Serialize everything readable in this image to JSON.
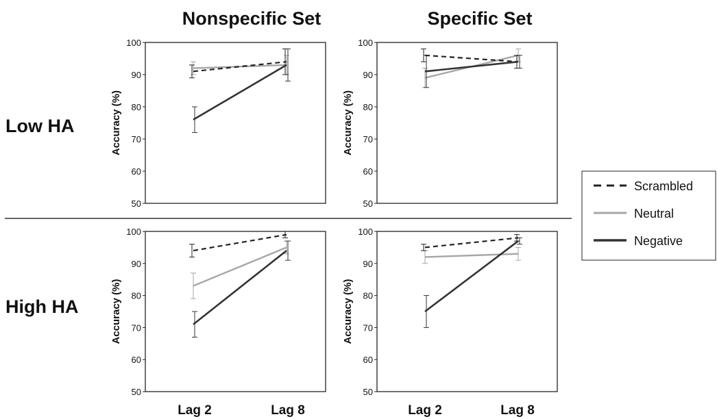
{
  "column_titles": [
    "Nonspecific Set",
    "Specific Set"
  ],
  "row_labels": [
    "Low HA",
    "High HA"
  ],
  "legend": [
    {
      "name": "Scrambled",
      "color": "#222222",
      "dashed": true
    },
    {
      "name": "Neutral",
      "color": "#a6a6a6",
      "dashed": false
    },
    {
      "name": "Negative",
      "color": "#333333",
      "dashed": false
    }
  ],
  "chart_data": [
    {
      "type": "line",
      "panel": "Low HA - Nonspecific Set",
      "categories": [
        "Lag 2",
        "Lag 8"
      ],
      "ylabel": "Accuracy (%)",
      "ylim": [
        50,
        100
      ],
      "yticks": [
        50,
        60,
        70,
        80,
        90,
        100
      ],
      "series": [
        {
          "name": "Scrambled",
          "values": [
            91,
            94
          ],
          "error": [
            2,
            4
          ]
        },
        {
          "name": "Neutral",
          "values": [
            92,
            93
          ],
          "error": [
            2,
            3
          ]
        },
        {
          "name": "Negative",
          "values": [
            76,
            93
          ],
          "error": [
            4,
            5
          ]
        }
      ]
    },
    {
      "type": "line",
      "panel": "Low HA - Specific Set",
      "categories": [
        "Lag 2",
        "Lag 8"
      ],
      "ylabel": "Accuracy (%)",
      "ylim": [
        50,
        100
      ],
      "yticks": [
        50,
        60,
        70,
        80,
        90,
        100
      ],
      "series": [
        {
          "name": "Scrambled",
          "values": [
            96,
            94
          ],
          "error": [
            2,
            2
          ]
        },
        {
          "name": "Neutral",
          "values": [
            89,
            96
          ],
          "error": [
            3,
            2
          ]
        },
        {
          "name": "Negative",
          "values": [
            91,
            94
          ],
          "error": [
            5,
            2
          ]
        }
      ]
    },
    {
      "type": "line",
      "panel": "High HA - Nonspecific Set",
      "categories": [
        "Lag 2",
        "Lag 8"
      ],
      "ylabel": "Accuracy (%)",
      "ylim": [
        50,
        100
      ],
      "yticks": [
        50,
        60,
        70,
        80,
        90,
        100
      ],
      "series": [
        {
          "name": "Scrambled",
          "values": [
            94,
            99
          ],
          "error": [
            2,
            1
          ]
        },
        {
          "name": "Neutral",
          "values": [
            83,
            95
          ],
          "error": [
            4,
            2
          ]
        },
        {
          "name": "Negative",
          "values": [
            71,
            94
          ],
          "error": [
            4,
            3
          ]
        }
      ]
    },
    {
      "type": "line",
      "panel": "High HA - Specific Set",
      "categories": [
        "Lag 2",
        "Lag 8"
      ],
      "ylabel": "Accuracy (%)",
      "ylim": [
        50,
        100
      ],
      "yticks": [
        50,
        60,
        70,
        80,
        90,
        100
      ],
      "series": [
        {
          "name": "Scrambled",
          "values": [
            95,
            98
          ],
          "error": [
            1,
            1
          ]
        },
        {
          "name": "Neutral",
          "values": [
            92,
            93
          ],
          "error": [
            2,
            2
          ]
        },
        {
          "name": "Negative",
          "values": [
            75,
            97
          ],
          "error": [
            5,
            1
          ]
        }
      ]
    }
  ]
}
